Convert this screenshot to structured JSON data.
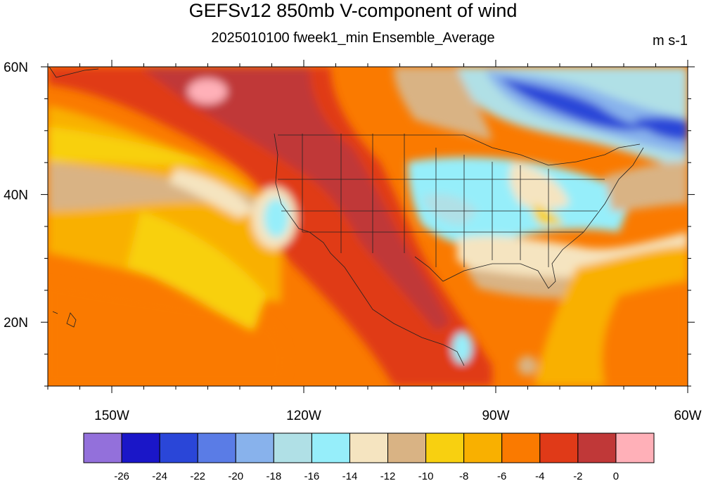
{
  "title": "GEFSv12 850mb V-component of wind",
  "subtitle": "2025010100 fweek1_min Ensemble_Average",
  "units": "m s-1",
  "map": {
    "lon_range": [
      -160,
      -60
    ],
    "lat_range": [
      10,
      60
    ],
    "lat_ticks": [
      {
        "label": "60N",
        "value": 60
      },
      {
        "label": "40N",
        "value": 40
      },
      {
        "label": "20N",
        "value": 20
      }
    ],
    "lon_ticks": [
      {
        "label": "150W",
        "value": -150
      },
      {
        "label": "120W",
        "value": -120
      },
      {
        "label": "90W",
        "value": -90
      },
      {
        "label": "60W",
        "value": -60
      }
    ]
  },
  "colorbar": {
    "colors": [
      "#9370db",
      "#1a16c8",
      "#2a46d8",
      "#5a7ce6",
      "#88b2ec",
      "#b0e0e6",
      "#96eefa",
      "#f5e4c0",
      "#d9b384",
      "#f8d010",
      "#f9b000",
      "#fa7a00",
      "#e03a18",
      "#c03838",
      "#ffb0b8"
    ],
    "labels": [
      "-26",
      "-24",
      "-22",
      "-20",
      "-18",
      "-16",
      "-14",
      "-12",
      "-10",
      "-8",
      "-6",
      "-4",
      "-2",
      "0"
    ]
  }
}
